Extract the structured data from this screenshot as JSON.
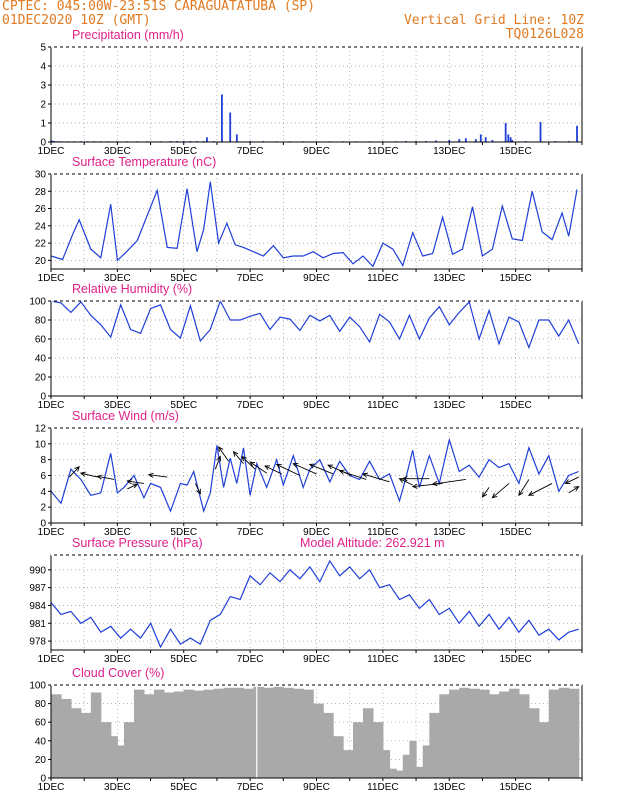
{
  "header": {
    "line1_left": "CPTEC:  045:00W-23:51S  CARAGUATATUBA (SP)",
    "line2_left": "01DEC2020 10Z (GMT)",
    "line2_right": "Vertical Grid Line: 10Z",
    "line3_right": "TQ0126L028",
    "model_altitude": "Model Altitude: 262.921 m"
  },
  "colors": {
    "header": "#e07a22",
    "title": "#e0218a",
    "series": "#1f3fd8",
    "cloud": "#a9a9a9",
    "axis": "#000000",
    "grid": "#9a9a9a"
  },
  "chart_data": [
    {
      "type": "bar",
      "title": "Precipitation (mm/h)",
      "x_tick_labels": [
        "1DEC",
        "3DEC",
        "5DEC",
        "7DEC",
        "9DEC",
        "11DEC",
        "13DEC",
        "15DEC"
      ],
      "ylim": [
        0,
        5
      ],
      "y_ticks": [
        0,
        1,
        2,
        3,
        4,
        5
      ],
      "x": [
        0.02,
        0.06,
        0.1,
        0.2,
        0.3,
        0.5,
        0.7,
        0.9,
        1.1,
        1.3,
        1.5,
        1.7,
        2.0,
        2.3,
        2.6,
        2.9,
        3.3,
        3.6,
        3.8,
        4.0,
        4.2,
        4.4,
        4.6,
        4.7,
        4.9,
        5.15,
        5.4,
        5.6,
        6.0,
        6.4,
        6.8,
        7.2,
        7.6,
        8.0,
        8.4,
        8.8,
        9.2,
        9.6,
        10.0,
        10.4,
        10.7,
        11.0,
        11.3,
        11.6,
        12.0,
        12.3,
        12.5,
        12.8,
        12.95,
        13.1,
        13.3,
        13.7,
        13.78,
        13.85,
        13.9,
        14.3,
        14.75,
        15.2,
        15.6,
        15.85
      ],
      "y": [
        0.08,
        0.05,
        0.05,
        0.04,
        0.04,
        0.04,
        0.04,
        0.04,
        0.04,
        0.04,
        0.04,
        0.04,
        0.04,
        0.04,
        0.04,
        0.04,
        0.04,
        0.05,
        0.05,
        0.05,
        0.05,
        0.05,
        0.05,
        0.25,
        0.05,
        2.5,
        1.55,
        0.4,
        0.05,
        0.05,
        0.04,
        0.04,
        0.04,
        0.04,
        0.04,
        0.04,
        0.04,
        0.04,
        0.04,
        0.04,
        0.05,
        0.05,
        0.05,
        0.08,
        0.1,
        0.15,
        0.2,
        0.15,
        0.4,
        0.25,
        0.1,
        1.0,
        0.4,
        0.25,
        0.1,
        0.05,
        1.05,
        0.05,
        0.05,
        0.85
      ]
    },
    {
      "type": "line",
      "title": "Surface Temperature (nC)",
      "x_tick_labels": [
        "1DEC",
        "3DEC",
        "5DEC",
        "7DEC",
        "9DEC",
        "11DEC",
        "13DEC",
        "15DEC"
      ],
      "ylim": [
        19,
        30
      ],
      "y_ticks": [
        20,
        22,
        24,
        26,
        28,
        30
      ],
      "x": [
        0,
        0.35,
        0.65,
        0.85,
        1.2,
        1.5,
        1.8,
        2.0,
        2.25,
        2.6,
        2.9,
        3.2,
        3.5,
        3.8,
        4.1,
        4.4,
        4.6,
        4.8,
        5.05,
        5.3,
        5.55,
        5.8,
        6.1,
        6.4,
        6.7,
        7.0,
        7.3,
        7.6,
        7.9,
        8.2,
        8.5,
        8.8,
        9.1,
        9.4,
        9.7,
        10.0,
        10.3,
        10.6,
        10.9,
        11.2,
        11.5,
        11.8,
        12.1,
        12.4,
        12.7,
        13.0,
        13.3,
        13.6,
        13.9,
        14.2,
        14.5,
        14.8,
        15.1,
        15.4,
        15.6,
        15.85
      ],
      "y": [
        20.5,
        20.1,
        23,
        24.7,
        21.3,
        20.3,
        26.5,
        20,
        20.9,
        22.3,
        25.2,
        28.1,
        21.5,
        21.4,
        28.3,
        21,
        23.6,
        29.1,
        22,
        24.3,
        21.8,
        21.5,
        21,
        20.5,
        21.7,
        20.3,
        20.5,
        20.5,
        21,
        20.3,
        20.8,
        20.9,
        19.6,
        20.5,
        19.3,
        22,
        21.3,
        19.4,
        23.2,
        20.5,
        20.8,
        25,
        20.7,
        21.3,
        26.2,
        20.5,
        21.3,
        26.3,
        22.5,
        22.3,
        28,
        23.3,
        22.4,
        25.5,
        22.8,
        28.2
      ]
    },
    {
      "type": "line",
      "title": "Relative Humidity (%)",
      "x_tick_labels": [
        "1DEC",
        "3DEC",
        "5DEC",
        "7DEC",
        "9DEC",
        "11DEC",
        "13DEC",
        "15DEC"
      ],
      "ylim": [
        0,
        100
      ],
      "y_ticks": [
        0,
        20,
        40,
        60,
        80,
        100
      ],
      "x": [
        0,
        0.3,
        0.6,
        0.9,
        1.2,
        1.5,
        1.8,
        2.1,
        2.4,
        2.7,
        3.0,
        3.3,
        3.6,
        3.9,
        4.2,
        4.5,
        4.8,
        5.1,
        5.4,
        5.7,
        6.0,
        6.3,
        6.6,
        6.9,
        7.2,
        7.5,
        7.8,
        8.1,
        8.4,
        8.7,
        9.0,
        9.3,
        9.6,
        9.9,
        10.2,
        10.5,
        10.8,
        11.1,
        11.4,
        11.7,
        12.0,
        12.3,
        12.6,
        12.9,
        13.2,
        13.5,
        13.8,
        14.1,
        14.4,
        14.7,
        15.0,
        15.3,
        15.6,
        15.9
      ],
      "y": [
        100,
        98,
        88,
        99,
        85,
        75,
        62,
        96,
        70,
        66,
        92,
        96,
        70,
        61,
        95,
        58,
        70,
        100,
        80,
        80,
        84,
        87,
        70,
        83,
        81,
        69,
        85,
        79,
        85,
        68,
        83,
        73,
        57,
        86,
        78,
        60,
        85,
        60,
        82,
        94,
        75,
        88,
        99,
        60,
        90,
        55,
        83,
        78,
        51,
        80,
        80,
        63,
        80,
        55
      ]
    },
    {
      "type": "line",
      "title": "Surface Wind (m/s)",
      "x_tick_labels": [
        "1DEC",
        "3DEC",
        "5DEC",
        "7DEC",
        "9DEC",
        "11DEC",
        "13DEC",
        "15DEC"
      ],
      "ylim": [
        0,
        12
      ],
      "y_ticks": [
        0,
        2,
        4,
        6,
        8,
        10,
        12
      ],
      "x": [
        0,
        0.3,
        0.6,
        0.9,
        1.2,
        1.5,
        1.8,
        2.0,
        2.2,
        2.5,
        2.8,
        3.0,
        3.3,
        3.6,
        3.9,
        4.1,
        4.3,
        4.6,
        4.8,
        5.0,
        5.2,
        5.4,
        5.6,
        5.8,
        6.0,
        6.2,
        6.5,
        6.8,
        7.0,
        7.3,
        7.6,
        7.8,
        8.1,
        8.4,
        8.7,
        9.0,
        9.3,
        9.6,
        9.9,
        10.2,
        10.5,
        10.7,
        10.9,
        11.1,
        11.4,
        11.7,
        12.0,
        12.3,
        12.6,
        12.9,
        13.2,
        13.5,
        13.8,
        14.1,
        14.4,
        14.7,
        15.0,
        15.3,
        15.6,
        15.9
      ],
      "y": [
        4,
        2.5,
        6.8,
        5.5,
        3.5,
        3.8,
        8.8,
        3.8,
        4.5,
        6,
        3.2,
        5,
        4.5,
        1.5,
        5,
        4.8,
        6.5,
        1.5,
        3.8,
        9.8,
        4.5,
        8.2,
        5,
        9.5,
        3.5,
        7.5,
        4.5,
        8,
        4.8,
        8.5,
        4.5,
        6.8,
        8,
        5.2,
        7.8,
        6,
        5.5,
        7.8,
        5.5,
        6.2,
        2.8,
        5.8,
        9.2,
        4.5,
        8.5,
        5,
        10.5,
        6.5,
        7.3,
        5.8,
        8,
        7,
        7.5,
        5,
        9.5,
        6.2,
        8.5,
        4,
        6,
        6.5
      ],
      "arrows": [
        {
          "x": 0.55,
          "y": 5.8,
          "dx": 0.3,
          "dy": 1.3
        },
        {
          "x": 1.4,
          "y": 5.8,
          "dx": -0.5,
          "dy": 0.5
        },
        {
          "x": 1.9,
          "y": 5.5,
          "dx": -0.5,
          "dy": 0.4
        },
        {
          "x": 2.3,
          "y": 4.3,
          "dx": 0.3,
          "dy": 0.6
        },
        {
          "x": 2.8,
          "y": 5,
          "dx": -0.5,
          "dy": 0.3
        },
        {
          "x": 3.5,
          "y": 5.8,
          "dx": -0.55,
          "dy": 0.3
        },
        {
          "x": 4.35,
          "y": 5,
          "dx": 0.15,
          "dy": -1.3
        },
        {
          "x": 4.95,
          "y": 6.8,
          "dx": 0.15,
          "dy": 1.6
        },
        {
          "x": 5.35,
          "y": 7.8,
          "dx": -0.3,
          "dy": 1.8
        },
        {
          "x": 5.8,
          "y": 7.5,
          "dx": -0.3,
          "dy": 1.5
        },
        {
          "x": 6.15,
          "y": 6.8,
          "dx": -0.4,
          "dy": 1.6
        },
        {
          "x": 6.5,
          "y": 6.3,
          "dx": -0.5,
          "dy": 1.4
        },
        {
          "x": 6.95,
          "y": 6.2,
          "dx": -0.5,
          "dy": 1.0
        },
        {
          "x": 7.5,
          "y": 6,
          "dx": -0.7,
          "dy": 1.4
        },
        {
          "x": 8.0,
          "y": 6.2,
          "dx": -0.7,
          "dy": 1.3
        },
        {
          "x": 8.5,
          "y": 6.2,
          "dx": -0.7,
          "dy": 1.2
        },
        {
          "x": 9.05,
          "y": 6.0,
          "dx": -0.7,
          "dy": 1.3
        },
        {
          "x": 9.5,
          "y": 5.5,
          "dx": -0.8,
          "dy": 1.1
        },
        {
          "x": 10.2,
          "y": 5.2,
          "dx": -0.8,
          "dy": 1.0
        },
        {
          "x": 10.9,
          "y": 4.8,
          "dx": -0.4,
          "dy": 0.8
        },
        {
          "x": 11.4,
          "y": 5.6,
          "dx": -0.8,
          "dy": 0.0
        },
        {
          "x": 11.8,
          "y": 5.0,
          "dx": -0.9,
          "dy": -0.4
        },
        {
          "x": 12.5,
          "y": 5.5,
          "dx": -1.0,
          "dy": -0.6
        },
        {
          "x": 13.2,
          "y": 4.5,
          "dx": -0.2,
          "dy": -1.2
        },
        {
          "x": 13.8,
          "y": 5.0,
          "dx": -0.5,
          "dy": -1.8
        },
        {
          "x": 14.4,
          "y": 5.5,
          "dx": -0.3,
          "dy": -2.0
        },
        {
          "x": 15.1,
          "y": 5.0,
          "dx": -0.7,
          "dy": -1.5
        },
        {
          "x": 15.6,
          "y": 3.8,
          "dx": 0.3,
          "dy": 0.8
        },
        {
          "x": 15.9,
          "y": 5.8,
          "dx": -0.4,
          "dy": -0.8
        }
      ]
    },
    {
      "type": "line",
      "title": "Surface Pressure (hPa)",
      "x_tick_labels": [
        "1DEC",
        "3DEC",
        "5DEC",
        "7DEC",
        "9DEC",
        "11DEC",
        "13DEC",
        "15DEC"
      ],
      "ylim": [
        976.5,
        992.5
      ],
      "y_ticks": [
        978,
        981,
        984,
        987,
        990
      ],
      "x": [
        0,
        0.3,
        0.6,
        0.9,
        1.2,
        1.5,
        1.8,
        2.1,
        2.4,
        2.7,
        3.0,
        3.3,
        3.6,
        3.9,
        4.2,
        4.5,
        4.8,
        5.1,
        5.4,
        5.7,
        6.0,
        6.3,
        6.6,
        6.9,
        7.2,
        7.5,
        7.8,
        8.1,
        8.4,
        8.7,
        9.0,
        9.3,
        9.6,
        9.9,
        10.2,
        10.5,
        10.8,
        11.1,
        11.4,
        11.7,
        12.0,
        12.3,
        12.6,
        12.9,
        13.2,
        13.5,
        13.8,
        14.1,
        14.4,
        14.7,
        15.0,
        15.3,
        15.6,
        15.9
      ],
      "y": [
        984.5,
        982.5,
        983,
        981,
        982,
        979.5,
        980.5,
        978.5,
        980,
        978.5,
        981,
        977,
        980,
        977.5,
        978.5,
        977.5,
        981.5,
        982.5,
        985.5,
        985,
        989,
        987.5,
        989.5,
        988,
        990,
        988.5,
        990.5,
        988,
        991.5,
        989,
        990.5,
        988.5,
        990,
        987,
        987.5,
        985,
        985.8,
        983.5,
        985,
        982.5,
        983.5,
        981,
        983,
        980.5,
        982.5,
        980,
        982,
        979.5,
        981.5,
        979,
        980,
        978.2,
        979.5,
        980
      ]
    },
    {
      "type": "area",
      "title": "Cloud Cover (%)",
      "x_tick_labels": [
        "1DEC",
        "3DEC",
        "5DEC",
        "7DEC",
        "9DEC",
        "11DEC",
        "13DEC",
        "15DEC"
      ],
      "ylim": [
        0,
        100
      ],
      "y_ticks": [
        0,
        20,
        40,
        60,
        80,
        100
      ],
      "x": [
        0,
        0.3,
        0.6,
        0.9,
        1.2,
        1.5,
        1.8,
        2.0,
        2.2,
        2.5,
        2.8,
        3.1,
        3.4,
        3.7,
        4.0,
        4.3,
        4.6,
        4.9,
        5.2,
        5.5,
        5.8,
        6.1,
        6.4,
        6.7,
        7.0,
        7.3,
        7.6,
        7.9,
        8.2,
        8.5,
        8.8,
        9.1,
        9.4,
        9.7,
        10.0,
        10.2,
        10.4,
        10.6,
        10.8,
        11.0,
        11.2,
        11.4,
        11.7,
        12.0,
        12.3,
        12.6,
        12.9,
        13.2,
        13.5,
        13.8,
        14.1,
        14.4,
        14.7,
        15.0,
        15.3,
        15.6,
        15.9
      ],
      "y": [
        90,
        85,
        75,
        70,
        92,
        60,
        45,
        35,
        60,
        95,
        90,
        95,
        92,
        93,
        95,
        94,
        95,
        96,
        97,
        97,
        96,
        98,
        97,
        98,
        97,
        96,
        95,
        80,
        70,
        45,
        30,
        60,
        75,
        60,
        30,
        10,
        8,
        25,
        40,
        12,
        35,
        70,
        90,
        95,
        97,
        96,
        95,
        90,
        93,
        96,
        90,
        75,
        60,
        95,
        97,
        96,
        96
      ],
      "gap_x": 6.2
    }
  ]
}
